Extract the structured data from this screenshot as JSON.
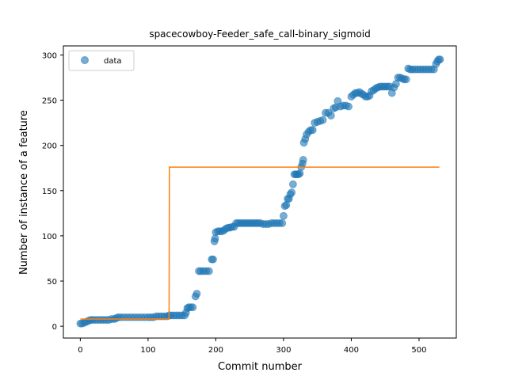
{
  "chart_data": {
    "type": "scatter",
    "title": "spacecowboy-Feeder_safe_call-binary_sigmoid",
    "xlabel": "Commit number",
    "ylabel": "Number of instance of a feature",
    "xlim": [
      -25,
      555
    ],
    "ylim": [
      -13,
      310
    ],
    "xticks": [
      0,
      100,
      200,
      300,
      400,
      500
    ],
    "yticks": [
      0,
      50,
      100,
      150,
      200,
      250,
      300
    ],
    "grid": false,
    "legend": {
      "placement": "top-left",
      "entries": [
        "data"
      ]
    },
    "colors": {
      "data": "#1f77b4",
      "fit": "#ff7f0e"
    },
    "series": [
      {
        "name": "data",
        "kind": "scatter",
        "points": [
          [
            0,
            3
          ],
          [
            3,
            3
          ],
          [
            6,
            4
          ],
          [
            9,
            5
          ],
          [
            12,
            6
          ],
          [
            15,
            7
          ],
          [
            18,
            7
          ],
          [
            22,
            7
          ],
          [
            26,
            7
          ],
          [
            30,
            7
          ],
          [
            34,
            7
          ],
          [
            38,
            7
          ],
          [
            42,
            7
          ],
          [
            46,
            8
          ],
          [
            50,
            8
          ],
          [
            53,
            9
          ],
          [
            56,
            10
          ],
          [
            60,
            10
          ],
          [
            65,
            10
          ],
          [
            70,
            10
          ],
          [
            75,
            10
          ],
          [
            80,
            10
          ],
          [
            85,
            10
          ],
          [
            90,
            10
          ],
          [
            95,
            10
          ],
          [
            100,
            10
          ],
          [
            104,
            10
          ],
          [
            108,
            10
          ],
          [
            112,
            11
          ],
          [
            116,
            11
          ],
          [
            120,
            11
          ],
          [
            124,
            11
          ],
          [
            128,
            11
          ],
          [
            131,
            12
          ],
          [
            134,
            12
          ],
          [
            138,
            12
          ],
          [
            142,
            12
          ],
          [
            146,
            12
          ],
          [
            150,
            12
          ],
          [
            154,
            12
          ],
          [
            156,
            15
          ],
          [
            158,
            20
          ],
          [
            160,
            21
          ],
          [
            163,
            21
          ],
          [
            166,
            21
          ],
          [
            170,
            33
          ],
          [
            172,
            36
          ],
          [
            175,
            61
          ],
          [
            178,
            61
          ],
          [
            182,
            61
          ],
          [
            186,
            61
          ],
          [
            190,
            61
          ],
          [
            194,
            74
          ],
          [
            196,
            74
          ],
          [
            198,
            94
          ],
          [
            199,
            97
          ],
          [
            200,
            104
          ],
          [
            203,
            105
          ],
          [
            206,
            105
          ],
          [
            209,
            105
          ],
          [
            212,
            106
          ],
          [
            215,
            108
          ],
          [
            218,
            109
          ],
          [
            221,
            109
          ],
          [
            224,
            110
          ],
          [
            227,
            110
          ],
          [
            230,
            114
          ],
          [
            233,
            114
          ],
          [
            236,
            114
          ],
          [
            239,
            114
          ],
          [
            242,
            114
          ],
          [
            245,
            114
          ],
          [
            248,
            114
          ],
          [
            251,
            114
          ],
          [
            254,
            114
          ],
          [
            257,
            114
          ],
          [
            260,
            114
          ],
          [
            263,
            114
          ],
          [
            266,
            114
          ],
          [
            270,
            113
          ],
          [
            274,
            113
          ],
          [
            278,
            113
          ],
          [
            282,
            114
          ],
          [
            286,
            114
          ],
          [
            290,
            114
          ],
          [
            294,
            114
          ],
          [
            298,
            114
          ],
          [
            300,
            122
          ],
          [
            302,
            133
          ],
          [
            304,
            134
          ],
          [
            306,
            141
          ],
          [
            308,
            141
          ],
          [
            310,
            146
          ],
          [
            312,
            148
          ],
          [
            314,
            157
          ],
          [
            316,
            168
          ],
          [
            318,
            168
          ],
          [
            320,
            168
          ],
          [
            322,
            168
          ],
          [
            324,
            169
          ],
          [
            326,
            176
          ],
          [
            328,
            180
          ],
          [
            329,
            184
          ],
          [
            330,
            203
          ],
          [
            332,
            207
          ],
          [
            334,
            212
          ],
          [
            337,
            215
          ],
          [
            340,
            217
          ],
          [
            343,
            217
          ],
          [
            346,
            225
          ],
          [
            350,
            226
          ],
          [
            354,
            227
          ],
          [
            358,
            228
          ],
          [
            362,
            236
          ],
          [
            366,
            236
          ],
          [
            370,
            233
          ],
          [
            374,
            241
          ],
          [
            377,
            242
          ],
          [
            380,
            249
          ],
          [
            384,
            243
          ],
          [
            388,
            244
          ],
          [
            392,
            244
          ],
          [
            396,
            243
          ],
          [
            400,
            254
          ],
          [
            403,
            256
          ],
          [
            406,
            258
          ],
          [
            409,
            258
          ],
          [
            412,
            259
          ],
          [
            415,
            257
          ],
          [
            418,
            256
          ],
          [
            421,
            254
          ],
          [
            424,
            254
          ],
          [
            427,
            255
          ],
          [
            430,
            260
          ],
          [
            433,
            261
          ],
          [
            436,
            263
          ],
          [
            439,
            264
          ],
          [
            442,
            265
          ],
          [
            445,
            265
          ],
          [
            448,
            265
          ],
          [
            451,
            265
          ],
          [
            454,
            265
          ],
          [
            457,
            265
          ],
          [
            460,
            258
          ],
          [
            463,
            264
          ],
          [
            466,
            268
          ],
          [
            469,
            275
          ],
          [
            472,
            275
          ],
          [
            475,
            274
          ],
          [
            478,
            273
          ],
          [
            481,
            273
          ],
          [
            484,
            285
          ],
          [
            487,
            284
          ],
          [
            490,
            284
          ],
          [
            494,
            284
          ],
          [
            498,
            284
          ],
          [
            502,
            284
          ],
          [
            506,
            284
          ],
          [
            510,
            284
          ],
          [
            514,
            284
          ],
          [
            518,
            284
          ],
          [
            522,
            284
          ],
          [
            525,
            290
          ],
          [
            527,
            293
          ],
          [
            529,
            295
          ],
          [
            531,
            295
          ]
        ]
      },
      {
        "kind": "line",
        "points": [
          [
            0,
            8
          ],
          [
            131,
            8
          ],
          [
            131.5,
            176
          ],
          [
            530,
            176
          ]
        ]
      }
    ]
  }
}
